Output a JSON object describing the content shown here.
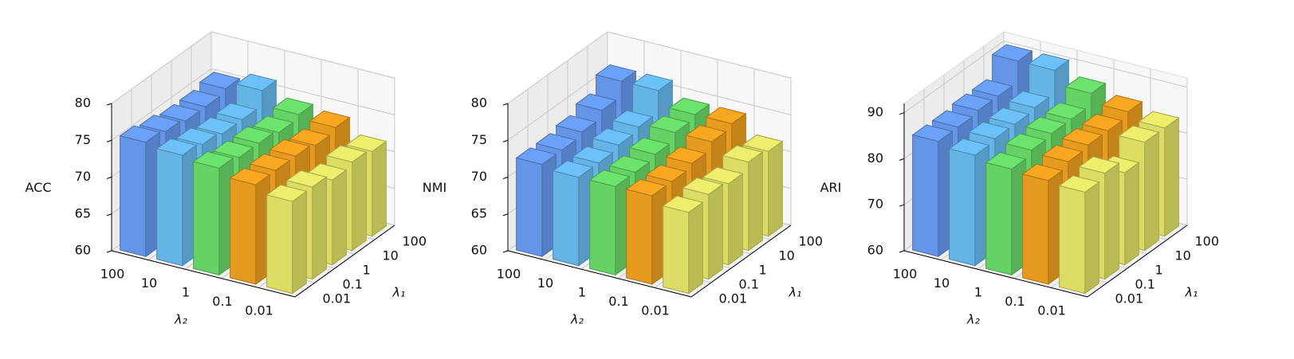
{
  "chart_data": [
    {
      "type": "bar3d",
      "zlabel": "ACC",
      "xlabel": "λ₂",
      "ylabel": "λ₁",
      "x_categories": [
        "100",
        "10",
        "1",
        "0.1",
        "0.01"
      ],
      "y_categories": [
        "0.01",
        "0.1",
        "1",
        "10",
        "100"
      ],
      "colors": [
        "#6495e6",
        "#64b4e6",
        "#64d264",
        "#e69b1e",
        "#dcdc64"
      ],
      "values": [
        [
          75.5,
          75,
          74.5,
          73.5,
          72.5
        ],
        [
          75,
          74.5,
          74,
          73.5,
          72.5
        ],
        [
          74.5,
          74,
          74,
          73.5,
          71.5
        ],
        [
          74.5,
          74,
          73.5,
          73,
          72
        ],
        [
          75,
          76,
          74,
          73.5,
          71.5
        ]
      ],
      "zlim": [
        60,
        80
      ],
      "zticks": [
        60,
        65,
        70,
        75,
        80
      ]
    },
    {
      "type": "bar3d",
      "zlabel": "NMI",
      "xlabel": "λ₂",
      "ylabel": "λ₁",
      "x_categories": [
        "100",
        "10",
        "1",
        "0.1",
        "0.01"
      ],
      "y_categories": [
        "0.01",
        "0.1",
        "1",
        "10",
        "100"
      ],
      "colors": [
        "#6495e6",
        "#64b4e6",
        "#64d264",
        "#e69b1e",
        "#dcdc64"
      ],
      "values": [
        [
          72.5,
          72,
          72,
          72,
          71
        ],
        [
          72.5,
          72,
          72,
          72,
          71.5
        ],
        [
          73,
          72.5,
          72.5,
          72.5,
          71
        ],
        [
          74,
          73,
          73.5,
          73.5,
          72
        ],
        [
          76,
          76,
          74,
          74,
          71.5
        ]
      ],
      "zlim": [
        60,
        80
      ],
      "zticks": [
        60,
        65,
        70,
        75,
        80
      ]
    },
    {
      "type": "bar3d",
      "zlabel": "ARI",
      "xlabel": "λ₂",
      "ylabel": "λ₁",
      "x_categories": [
        "100",
        "10",
        "1",
        "0.1",
        "0.01"
      ],
      "y_categories": [
        "0.01",
        "0.1",
        "1",
        "10",
        "100"
      ],
      "colors": [
        "#6495e6",
        "#64b4e6",
        "#64d264",
        "#e69b1e",
        "#dcdc64"
      ],
      "values": [
        [
          85,
          84,
          83,
          82.5,
          82
        ],
        [
          85,
          84.5,
          84,
          83.5,
          83
        ],
        [
          85.5,
          84.5,
          84.5,
          84,
          80
        ],
        [
          85.5,
          85,
          84.5,
          84,
          83.5
        ],
        [
          90,
          90,
          87,
          85,
          83.5
        ]
      ],
      "zlim": [
        60,
        92
      ],
      "zticks": [
        60,
        70,
        80,
        90
      ]
    }
  ]
}
